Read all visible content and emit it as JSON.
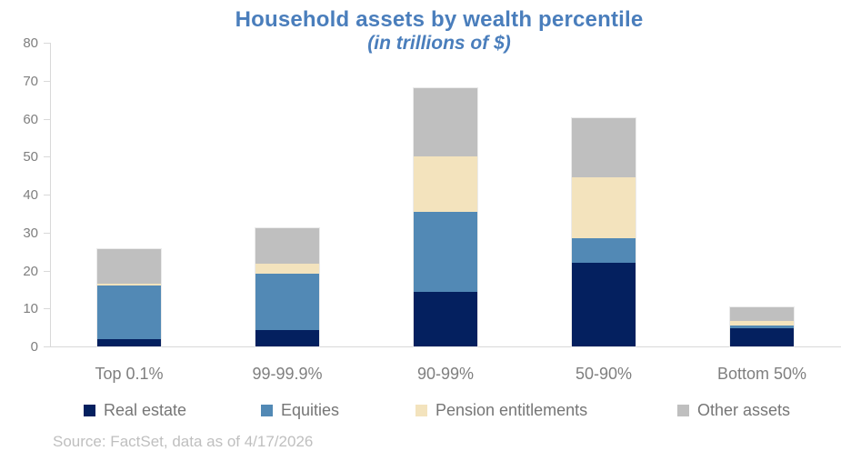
{
  "title": "Household assets by wealth percentile",
  "subtitle": "(in trillions of $)",
  "source": "Source: FactSet, data as of 4/17/2026",
  "colors": {
    "title_blue": "#4a7ebc",
    "axis_gray": "#d9d9d9",
    "tick_text_gray": "#7f7f7f",
    "legend_text_gray": "#767676",
    "source_gray": "#bfbfbf",
    "real_estate": "#04205f",
    "equities": "#5289b5",
    "pension_entitlements": "#f3e3bd",
    "other_assets": "#bfbfbf"
  },
  "chart_data": {
    "type": "bar",
    "stacked": true,
    "title": "Household assets by wealth percentile",
    "subtitle": "(in trillions of $)",
    "xlabel": "",
    "ylabel": "",
    "ylim": [
      0,
      80
    ],
    "yticks": [
      0,
      10,
      20,
      30,
      40,
      50,
      60,
      70,
      80
    ],
    "grid": false,
    "legend_position": "bottom",
    "categories": [
      "Top 0.1%",
      "99-99.9%",
      "90-99%",
      "50-90%",
      "Bottom 50%"
    ],
    "series": [
      {
        "name": "Real estate",
        "color": "#04205f",
        "values": [
          2.0,
          4.3,
          14.3,
          22.0,
          4.8
        ]
      },
      {
        "name": "Equities",
        "color": "#5289b5",
        "values": [
          14.1,
          14.9,
          21.2,
          6.5,
          0.8
        ]
      },
      {
        "name": "Pension entitlements",
        "color": "#f3e3bd",
        "values": [
          0.5,
          2.6,
          14.5,
          16.0,
          1.2
        ]
      },
      {
        "name": "Other assets",
        "color": "#bfbfbf",
        "values": [
          9.1,
          9.4,
          18.0,
          15.7,
          3.6
        ]
      }
    ],
    "totals": [
      25.7,
      31.2,
      68.0,
      60.2,
      10.4
    ]
  }
}
